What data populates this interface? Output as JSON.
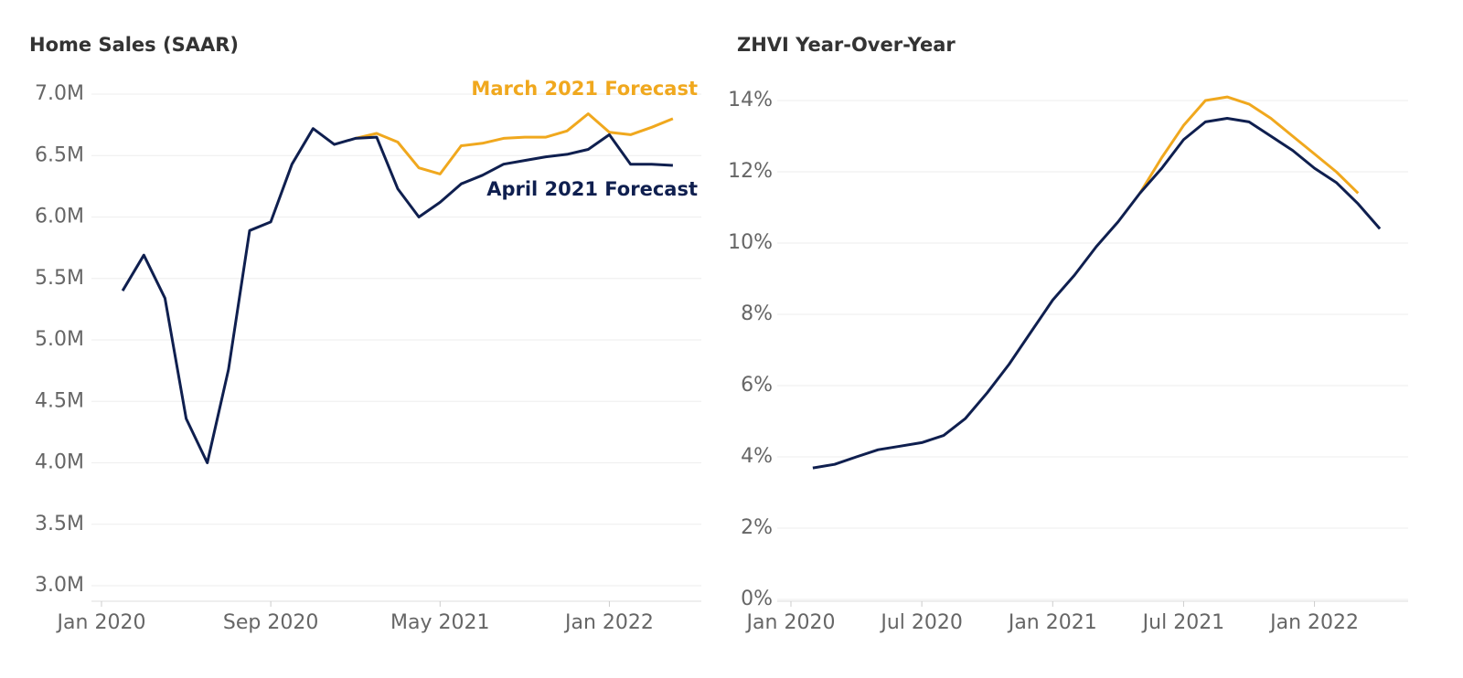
{
  "chart_data": [
    {
      "type": "line",
      "title": "Home Sales (SAAR)",
      "x": [
        "2020-02",
        "2020-03",
        "2020-04",
        "2020-05",
        "2020-06",
        "2020-07",
        "2020-08",
        "2020-09",
        "2020-10",
        "2020-11",
        "2020-12",
        "2021-01",
        "2021-02",
        "2021-03",
        "2021-04",
        "2021-05",
        "2021-06",
        "2021-07",
        "2021-08",
        "2021-09",
        "2021-10",
        "2021-11",
        "2021-12",
        "2022-01",
        "2022-02",
        "2022-03",
        "2022-04"
      ],
      "series": [
        {
          "name": "March 2021 Forecast",
          "color": "#f0a81e",
          "values": [
            null,
            null,
            null,
            null,
            null,
            null,
            null,
            null,
            null,
            null,
            null,
            6.64,
            6.68,
            6.61,
            6.4,
            6.35,
            6.58,
            6.6,
            6.64,
            6.65,
            6.65,
            6.7,
            6.84,
            6.69,
            6.67,
            6.73,
            6.8
          ]
        },
        {
          "name": "April 2021 Forecast",
          "color": "#0f1f4f",
          "values": [
            5.4,
            5.69,
            5.34,
            4.36,
            4.0,
            4.76,
            5.89,
            5.96,
            6.43,
            6.72,
            6.59,
            6.64,
            6.65,
            6.23,
            6.0,
            6.12,
            6.27,
            6.34,
            6.43,
            6.46,
            6.49,
            6.51,
            6.55,
            6.67,
            6.43,
            6.43,
            6.42
          ]
        }
      ],
      "xlim": [
        "2020-01",
        "2022-05"
      ],
      "xticks": [
        {
          "value": "2020-01",
          "label": "Jan 2020"
        },
        {
          "value": "2020-09",
          "label": "Sep 2020"
        },
        {
          "value": "2021-05",
          "label": "May 2021"
        },
        {
          "value": "2022-01",
          "label": "Jan 2022"
        }
      ],
      "ylim": [
        3,
        7
      ],
      "yticks": [
        {
          "value": 3,
          "label": "3.0M"
        },
        {
          "value": 3.5,
          "label": "3.5M"
        },
        {
          "value": 4,
          "label": "4.0M"
        },
        {
          "value": 4.5,
          "label": "4.5M"
        },
        {
          "value": 5,
          "label": "5.0M"
        },
        {
          "value": 5.5,
          "label": "5.5M"
        },
        {
          "value": 6,
          "label": "6.0M"
        },
        {
          "value": 6.5,
          "label": "6.5M"
        },
        {
          "value": 7,
          "label": "7.0M"
        }
      ],
      "grid": true
    },
    {
      "type": "line",
      "title": "ZHVI Year-Over-Year",
      "x": [
        "2020-02",
        "2020-03",
        "2020-04",
        "2020-05",
        "2020-06",
        "2020-07",
        "2020-08",
        "2020-09",
        "2020-10",
        "2020-11",
        "2020-12",
        "2021-01",
        "2021-02",
        "2021-03",
        "2021-04",
        "2021-05",
        "2021-06",
        "2021-07",
        "2021-08",
        "2021-09",
        "2021-10",
        "2021-11",
        "2021-12",
        "2022-01",
        "2022-02",
        "2022-03",
        "2022-04"
      ],
      "series": [
        {
          "color": "#f0a81e",
          "values": [
            null,
            null,
            null,
            null,
            null,
            null,
            null,
            null,
            null,
            null,
            null,
            null,
            null,
            null,
            null,
            11.4,
            12.4,
            13.3,
            14.0,
            14.1,
            13.9,
            13.5,
            13.0,
            12.5,
            12.0,
            11.4,
            null
          ]
        },
        {
          "color": "#0f1f4f",
          "values": [
            3.69,
            3.79,
            4.0,
            4.2,
            4.3,
            4.4,
            4.6,
            5.08,
            5.8,
            6.6,
            7.5,
            8.4,
            9.1,
            9.9,
            10.6,
            11.4,
            12.1,
            12.9,
            13.4,
            13.5,
            13.4,
            13.0,
            12.6,
            12.1,
            11.7,
            11.1,
            10.4
          ]
        }
      ],
      "xlim": [
        "2020-01",
        "2022-05"
      ],
      "xticks": [
        {
          "value": "2020-01",
          "label": "Jan 2020"
        },
        {
          "value": "2020-07",
          "label": "Jul 2020"
        },
        {
          "value": "2021-01",
          "label": "Jan 2021"
        },
        {
          "value": "2021-07",
          "label": "Jul 2021"
        },
        {
          "value": "2022-01",
          "label": "Jan 2022"
        }
      ],
      "ylim": [
        0,
        14
      ],
      "yticks": [
        {
          "value": 0,
          "label": "0%"
        },
        {
          "value": 2,
          "label": "2%"
        },
        {
          "value": 4,
          "label": "4%"
        },
        {
          "value": 6,
          "label": "6%"
        },
        {
          "value": 8,
          "label": "8%"
        },
        {
          "value": 10,
          "label": "10%"
        },
        {
          "value": 12,
          "label": "12%"
        },
        {
          "value": 14,
          "label": "14%"
        }
      ],
      "grid": true
    }
  ]
}
